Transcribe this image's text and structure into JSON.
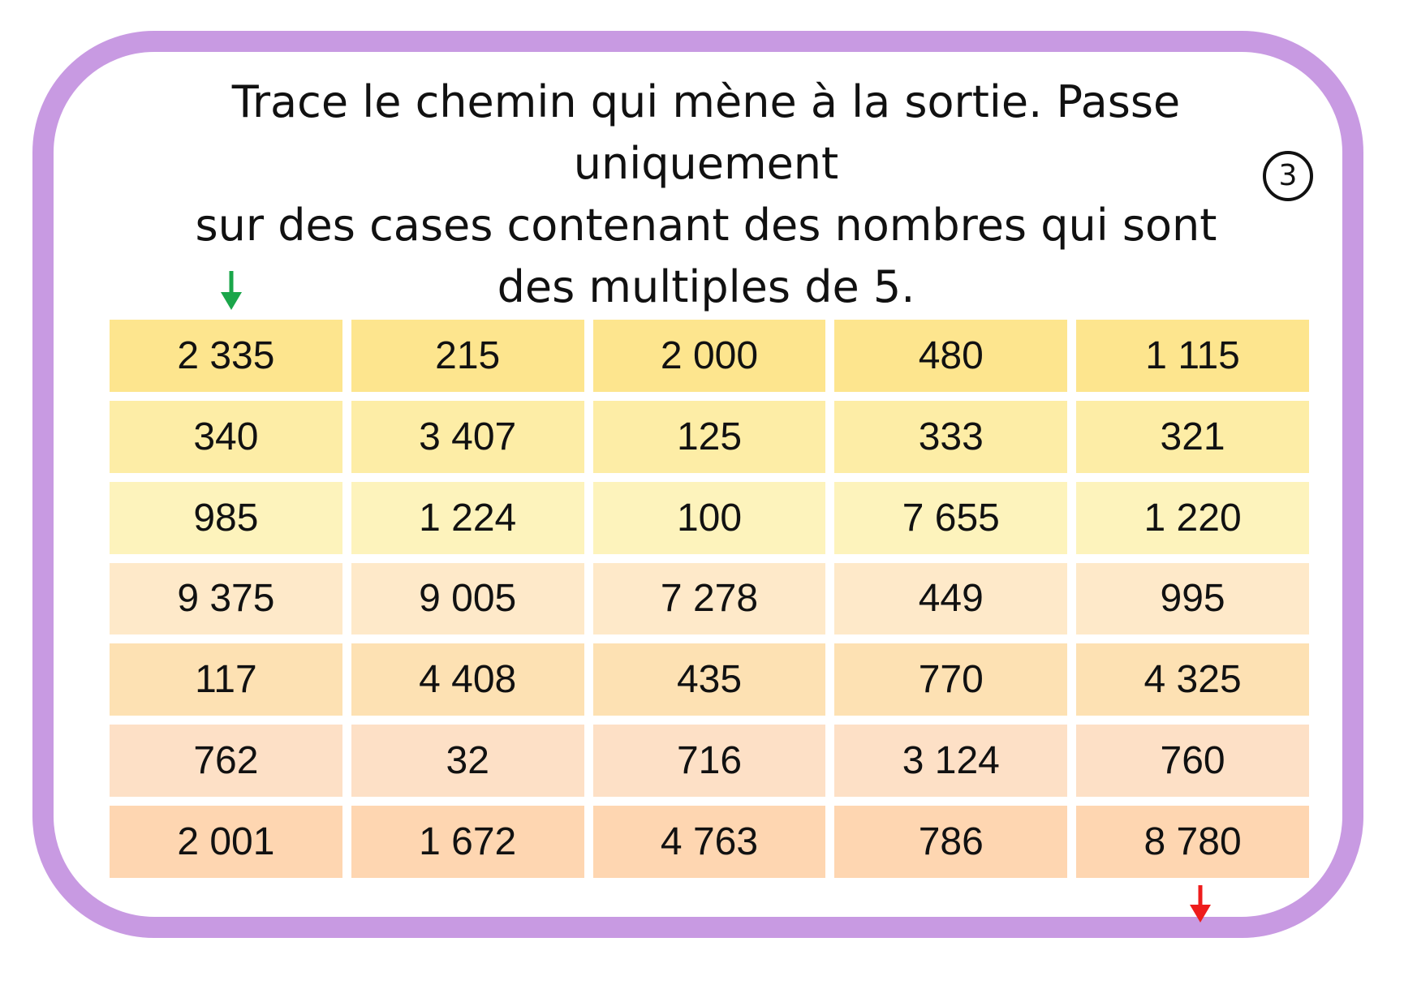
{
  "instruction": {
    "line1": "Trace le chemin qui mène à la sortie. Passe uniquement",
    "line2": "sur des cases contenant des nombres qui sont",
    "line3": "des multiples de 5."
  },
  "card_number": "3",
  "colors": {
    "border": "#c89ae2",
    "start_arrow": "#1aa64a",
    "exit_arrow": "#ee1c1c",
    "row_backgrounds": [
      "#fde58e",
      "#fdeda6",
      "#fdf3bc",
      "#fee9c9",
      "#fde1b3",
      "#fde0c6",
      "#fed6b1"
    ]
  },
  "icons": {
    "start": "arrow-down-icon",
    "exit": "arrow-down-icon"
  },
  "grid": [
    [
      "2 335",
      "215",
      "2 000",
      "480",
      "1 115"
    ],
    [
      "340",
      "3 407",
      "125",
      "333",
      "321"
    ],
    [
      "985",
      "1 224",
      "100",
      "7 655",
      "1 220"
    ],
    [
      "9 375",
      "9 005",
      "7 278",
      "449",
      "995"
    ],
    [
      "117",
      "4 408",
      "435",
      "770",
      "4 325"
    ],
    [
      "762",
      "32",
      "716",
      "3 124",
      "760"
    ],
    [
      "2 001",
      "1 672",
      "4 763",
      "786",
      "8 780"
    ]
  ]
}
